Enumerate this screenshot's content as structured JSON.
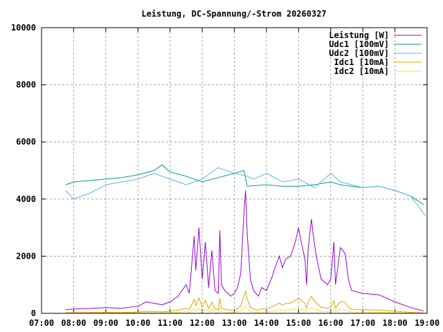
{
  "chart_data": {
    "type": "line",
    "title": "Leistung, DC-Spannung/-Strom 20260327",
    "xlabel": "",
    "ylabel": "",
    "xlim": [
      7,
      19
    ],
    "ylim": [
      0,
      10000
    ],
    "grid": true,
    "legend_position": "top-right",
    "xticks": [
      "07:00",
      "08:00",
      "09:00",
      "10:00",
      "11:00",
      "12:00",
      "13:00",
      "14:00",
      "15:00",
      "16:00",
      "17:00",
      "18:00",
      "19:00"
    ],
    "yticks": [
      "0",
      "2000",
      "4000",
      "6000",
      "8000",
      "10000"
    ],
    "series": [
      {
        "name": "Leistung [W]",
        "color": "#9400d3",
        "x": [
          7.75,
          8.0,
          8.5,
          9.0,
          9.5,
          10.0,
          10.25,
          10.5,
          10.75,
          11.0,
          11.25,
          11.5,
          11.6,
          11.75,
          11.8,
          11.9,
          12.0,
          12.1,
          12.2,
          12.3,
          12.4,
          12.5,
          12.55,
          12.6,
          12.7,
          12.9,
          13.0,
          13.1,
          13.2,
          13.3,
          13.35,
          13.4,
          13.5,
          13.6,
          13.75,
          13.85,
          14.0,
          14.15,
          14.3,
          14.4,
          14.5,
          14.6,
          14.75,
          14.9,
          15.0,
          15.1,
          15.2,
          15.25,
          15.3,
          15.4,
          15.45,
          15.55,
          15.7,
          15.9,
          16.0,
          16.1,
          16.15,
          16.3,
          16.45,
          16.55,
          16.65,
          17.0,
          17.5,
          18.0,
          18.5,
          18.9
        ],
        "values": [
          130,
          150,
          170,
          200,
          180,
          250,
          400,
          350,
          300,
          400,
          600,
          1000,
          700,
          2700,
          1500,
          3000,
          1200,
          2500,
          900,
          2200,
          800,
          700,
          2900,
          1000,
          800,
          600,
          700,
          900,
          1400,
          3500,
          4300,
          2800,
          1200,
          800,
          600,
          900,
          800,
          1200,
          1700,
          2000,
          1600,
          1900,
          2000,
          2500,
          3000,
          2400,
          1900,
          1000,
          2300,
          3300,
          2800,
          2000,
          1200,
          1000,
          1200,
          2500,
          1000,
          2300,
          2100,
          1200,
          800,
          700,
          650,
          400,
          200,
          80
        ]
      },
      {
        "name": "Udc1 [100mV]",
        "color": "#009e73",
        "x": [
          7.75,
          8.0,
          8.5,
          9.0,
          9.5,
          10.0,
          10.5,
          10.75,
          11.0,
          11.5,
          12.0,
          12.5,
          13.0,
          13.3,
          13.4,
          14.0,
          14.5,
          15.0,
          15.5,
          16.0,
          16.3,
          17.0,
          17.5,
          18.0,
          18.5,
          18.9
        ],
        "values": [
          4500,
          4600,
          4650,
          4700,
          4750,
          4850,
          5000,
          5200,
          4950,
          4800,
          4600,
          4750,
          4900,
          5000,
          4450,
          4500,
          4450,
          4450,
          4500,
          4600,
          4500,
          4400,
          4450,
          4300,
          4100,
          3800
        ]
      },
      {
        "name": "Udc2 [100mV]",
        "color": "#56b4e9",
        "x": [
          7.75,
          8.0,
          8.5,
          9.0,
          9.5,
          10.0,
          10.5,
          11.0,
          11.5,
          12.0,
          12.5,
          13.0,
          13.4,
          13.6,
          14.0,
          14.5,
          15.0,
          15.5,
          16.0,
          16.3,
          17.0,
          17.5,
          18.0,
          18.5,
          18.95
        ],
        "values": [
          4300,
          4000,
          4200,
          4500,
          4600,
          4700,
          4900,
          4700,
          4500,
          4700,
          5100,
          4900,
          4800,
          4700,
          4900,
          4600,
          4700,
          4400,
          4900,
          4600,
          4400,
          4450,
          4300,
          4100,
          3400
        ]
      },
      {
        "name": "Idc1 [10mA]",
        "color": "#e69f00",
        "x": [
          7.75,
          8.0,
          8.5,
          9.0,
          9.5,
          10.0,
          10.25,
          10.5,
          10.75,
          11.0,
          11.25,
          11.5,
          11.6,
          11.75,
          11.8,
          11.9,
          12.0,
          12.1,
          12.2,
          12.3,
          12.4,
          12.5,
          12.55,
          12.6,
          12.7,
          12.9,
          13.0,
          13.1,
          13.2,
          13.3,
          13.35,
          13.4,
          13.5,
          13.6,
          13.75,
          13.85,
          14.0,
          14.15,
          14.3,
          14.4,
          14.5,
          14.6,
          14.75,
          14.9,
          15.0,
          15.1,
          15.2,
          15.25,
          15.3,
          15.4,
          15.45,
          15.55,
          15.7,
          15.9,
          16.0,
          16.1,
          16.15,
          16.3,
          16.45,
          16.55,
          16.65,
          17.0,
          17.5,
          18.0,
          18.5,
          18.9
        ],
        "values": [
          23,
          27,
          31,
          36,
          32,
          45,
          72,
          63,
          54,
          72,
          108,
          180,
          126,
          486,
          270,
          540,
          216,
          450,
          162,
          396,
          144,
          126,
          522,
          180,
          144,
          108,
          126,
          162,
          252,
          630,
          774,
          504,
          216,
          144,
          108,
          162,
          144,
          216,
          306,
          360,
          288,
          342,
          360,
          450,
          540,
          432,
          342,
          180,
          414,
          594,
          504,
          360,
          216,
          180,
          216,
          450,
          180,
          414,
          378,
          216,
          144,
          126,
          117,
          72,
          36,
          14
        ]
      },
      {
        "name": "Idc2 [10mA]",
        "color": "#f0e442",
        "x": [
          7.75,
          8.0,
          8.5,
          9.0,
          9.5,
          10.0,
          10.25,
          10.5,
          10.75,
          11.0,
          11.25,
          11.5,
          11.6,
          11.75,
          11.8,
          11.9,
          12.0,
          12.1,
          12.2,
          12.3,
          12.4,
          12.5,
          12.55,
          12.6,
          12.7,
          12.9,
          13.0,
          13.1,
          13.2,
          13.3,
          13.35,
          13.4,
          13.5,
          13.6,
          13.75,
          13.85,
          14.0,
          14.15,
          14.3,
          14.4,
          14.5,
          14.6,
          14.75,
          14.9,
          15.0,
          15.1,
          15.2,
          15.25,
          15.3,
          15.4,
          15.45,
          15.55,
          15.7,
          15.9,
          16.0,
          16.1,
          16.15,
          16.3,
          16.45,
          16.55,
          16.65,
          17.0,
          17.5,
          18.0,
          18.5,
          18.9
        ],
        "values": [
          8,
          9,
          10,
          12,
          11,
          15,
          24,
          21,
          18,
          24,
          36,
          60,
          42,
          162,
          90,
          180,
          72,
          150,
          54,
          132,
          48,
          42,
          174,
          60,
          48,
          36,
          42,
          54,
          84,
          210,
          258,
          168,
          72,
          48,
          36,
          54,
          48,
          72,
          102,
          120,
          96,
          114,
          120,
          150,
          180,
          144,
          114,
          60,
          138,
          198,
          168,
          120,
          72,
          60,
          72,
          150,
          60,
          138,
          126,
          72,
          48,
          42,
          39,
          24,
          12,
          5
        ]
      }
    ]
  }
}
